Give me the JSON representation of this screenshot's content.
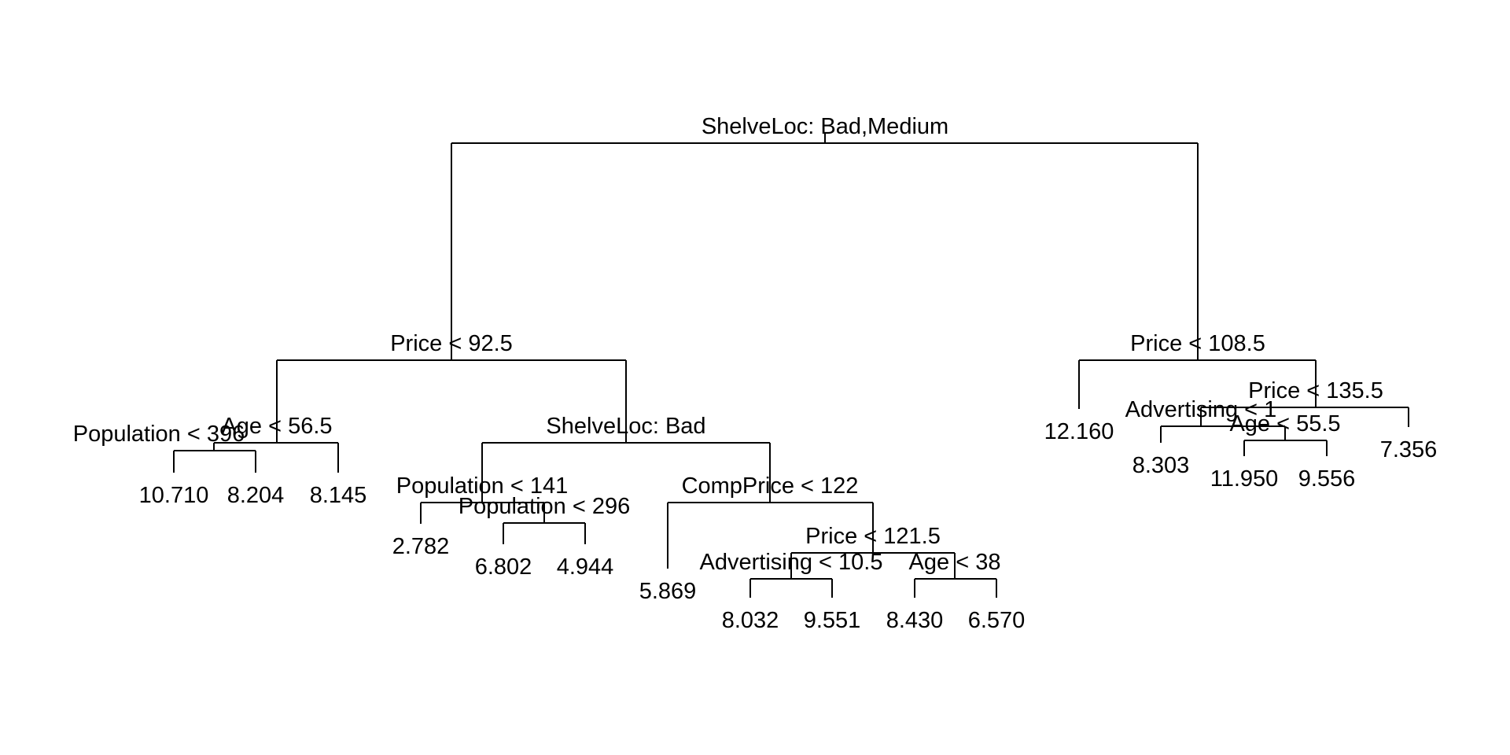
{
  "tree": {
    "root": {
      "label": "ShelveLoc: Bad,Medium",
      "left": {
        "label": "Price < 92.5",
        "left": {
          "label": "Age < 56.5",
          "left": {
            "label": "Population < 396",
            "left": {
              "leaf": "10.710"
            },
            "right": {
              "leaf": "8.204"
            }
          },
          "right": {
            "leaf": "8.145"
          }
        },
        "right": {
          "label": "ShelveLoc: Bad",
          "left": {
            "label": "Population < 141",
            "left": {
              "leaf": "2.782"
            },
            "right": {
              "label": "Population < 296",
              "left": {
                "leaf": "6.802"
              },
              "right": {
                "leaf": "4.944"
              }
            }
          },
          "right": {
            "label": "CompPrice < 122",
            "left": {
              "leaf": "5.869"
            },
            "right": {
              "label": "Price < 121.5",
              "left": {
                "label": "Advertising < 10.5",
                "left": {
                  "leaf": "8.032"
                },
                "right": {
                  "leaf": "9.551"
                }
              },
              "right": {
                "label": "Age < 38",
                "left": {
                  "leaf": "8.430"
                },
                "right": {
                  "leaf": "6.570"
                }
              }
            }
          }
        }
      },
      "right": {
        "label": "Price < 108.5",
        "left": {
          "leaf": "12.160"
        },
        "right": {
          "label": "Price < 135.5",
          "left": {
            "label": "Advertising < 1",
            "left": {
              "leaf": "8.303"
            },
            "right": {
              "label": "Age < 55.5",
              "left": {
                "leaf": "11.950"
              },
              "right": {
                "leaf": "9.556"
              }
            }
          },
          "right": {
            "leaf": "7.356"
          }
        }
      }
    }
  }
}
